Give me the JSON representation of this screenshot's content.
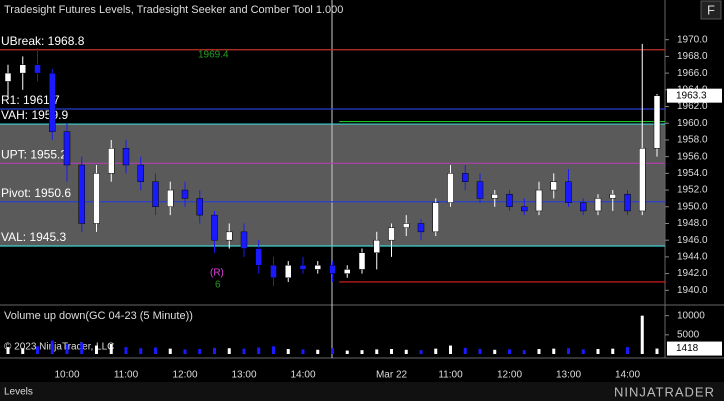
{
  "chart_data": [
    {
      "type": "candlestick",
      "title": "Tradesight Futures Levels, Tradesight Seeker and Comber Tool 1.000",
      "categories": [
        null,
        null,
        null,
        null,
        "10:00",
        null,
        null,
        null,
        "11:00",
        null,
        null,
        null,
        "12:00",
        null,
        null,
        null,
        "13:00",
        null,
        null,
        null,
        "14:00",
        null,
        null,
        null,
        null,
        null,
        "Mar 22",
        null,
        null,
        null,
        "11:00",
        null,
        null,
        null,
        "12:00",
        null,
        null,
        null,
        "13:00",
        null,
        null,
        null,
        "14:00",
        null,
        null
      ],
      "open": [
        1965,
        1966,
        1967,
        1966,
        1959,
        1955,
        1948,
        1954,
        1957,
        1955,
        1953,
        1950,
        1952,
        1951,
        1949,
        1946,
        1947,
        1945,
        1943,
        1941.5,
        1943,
        1942.5,
        1943,
        1942,
        1942.5,
        1944.5,
        1946,
        1947.5,
        1948,
        1947,
        1950.5,
        1954,
        1953,
        1951,
        1951.5,
        1950,
        1949.5,
        1952,
        1953,
        1950.5,
        1949.5,
        1951,
        1951.5,
        1949.5,
        1957
      ],
      "high": [
        1967,
        1968,
        1969,
        1966.5,
        1960,
        1956,
        1955,
        1958,
        1958,
        1956,
        1954,
        1953,
        1953,
        1952,
        1949.5,
        1948,
        1948,
        1946,
        1944,
        1943.5,
        1944,
        1943.5,
        1943.5,
        1943,
        1945,
        1947,
        1948,
        1949,
        1948.5,
        1951,
        1955,
        1955,
        1954,
        1952,
        1952,
        1951,
        1953,
        1954,
        1954.5,
        1951,
        1951.5,
        1952,
        1952,
        1969.5,
        1963.5
      ],
      "low": [
        1963,
        1964,
        1965,
        1958,
        1953,
        1947,
        1947,
        1953,
        1954,
        1952,
        1949,
        1949,
        1950,
        1948,
        1944.5,
        1945,
        1944,
        1942,
        1940.5,
        1941,
        1942,
        1942,
        1941,
        1941.5,
        1942,
        1942.5,
        1944,
        1946.5,
        1946,
        1946.5,
        1950,
        1952,
        1950.5,
        1950,
        1949.5,
        1949,
        1949,
        1951,
        1950,
        1949,
        1949,
        1949.5,
        1949,
        1949,
        1956
      ],
      "close": [
        1966,
        1967,
        1966,
        1959,
        1955,
        1948,
        1954,
        1957,
        1955,
        1953,
        1950,
        1952,
        1951,
        1949,
        1946,
        1947,
        1945,
        1943,
        1941.5,
        1943,
        1942.5,
        1943,
        1942,
        1942.5,
        1944.5,
        1946,
        1947.5,
        1948,
        1947,
        1950.5,
        1954,
        1953,
        1951,
        1951.5,
        1950,
        1949.5,
        1952,
        1953,
        1950.5,
        1949.5,
        1951,
        1951.5,
        1949.5,
        1957,
        1963.3
      ],
      "up_color": "#ffffff",
      "down_color": "#1a1aff",
      "ylim": [
        1938.6,
        1971.4
      ],
      "yticks": [
        {
          "value": 1940,
          "label": "1940.0"
        },
        {
          "value": 1942,
          "label": "1942.0"
        },
        {
          "value": 1944,
          "label": "1944.0"
        },
        {
          "value": 1946,
          "label": "1946.0"
        },
        {
          "value": 1948,
          "label": "1948.0"
        },
        {
          "value": 1950,
          "label": "1950.0"
        },
        {
          "value": 1952,
          "label": "1952.0"
        },
        {
          "value": 1954,
          "label": "1954.0"
        },
        {
          "value": 1956,
          "label": "1956.0"
        },
        {
          "value": 1958,
          "label": "1958.0"
        },
        {
          "value": 1960,
          "label": "1960.0"
        },
        {
          "value": 1962,
          "label": "1962.0"
        },
        {
          "value": 1964,
          "label": "1964.0"
        },
        {
          "value": 1966,
          "label": "1966.0"
        },
        {
          "value": 1968,
          "label": "1968.0"
        },
        {
          "value": 1970,
          "label": "1970.0"
        }
      ],
      "levels": [
        {
          "value": 1968.8,
          "label": "UBreak: 1968.8",
          "color": "#c0302a"
        },
        {
          "value": 1961.7,
          "label": "R1: 1961.7",
          "color": "#2a3fd0"
        },
        {
          "value": 1959.9,
          "label": "VAH: 1959.9",
          "color": "#40d0d0"
        },
        {
          "value": 1955.2,
          "label": "UPT: 1955.2",
          "color": "#b040b0"
        },
        {
          "value": 1950.6,
          "label": "Pivot: 1950.6",
          "color": "#2a3fd0"
        },
        {
          "value": 1945.3,
          "label": "VAL: 1945.3",
          "color": "#40d0d0"
        },
        {
          "value": 1960.2,
          "color": "#20c020",
          "start": 23
        },
        {
          "value": 1941,
          "color": "#e02020",
          "start": 23
        }
      ],
      "value_area_color": "#5a5a5a",
      "annotations": [
        {
          "text": "1969.4",
          "color": "#20a020"
        },
        {
          "text": "(R)",
          "color": "#e040e0"
        },
        {
          "text": "6",
          "color": "#20a020"
        }
      ],
      "footer": "© 2023 NinjaTrader, LLC",
      "tab": "Levels",
      "logo": "NINJATRADER",
      "button": "F"
    },
    {
      "type": "bar",
      "title": "Volume up down(GC 04-23 (5 Minute))",
      "values": [
        1800,
        1500,
        2000,
        3500,
        2500,
        3000,
        2200,
        2600,
        1800,
        1500,
        1700,
        1400,
        1200,
        1300,
        1600,
        1500,
        1400,
        1700,
        2000,
        1300,
        1200,
        1100,
        1500,
        900,
        1000,
        1200,
        1300,
        1100,
        1000,
        1400,
        2200,
        1600,
        1300,
        1100,
        1200,
        1000,
        1300,
        1400,
        1500,
        1200,
        1300,
        1400,
        1800,
        10000,
        1418
      ],
      "ylim": [
        0,
        12000
      ],
      "yticks": [
        5000,
        10000
      ]
    }
  ]
}
